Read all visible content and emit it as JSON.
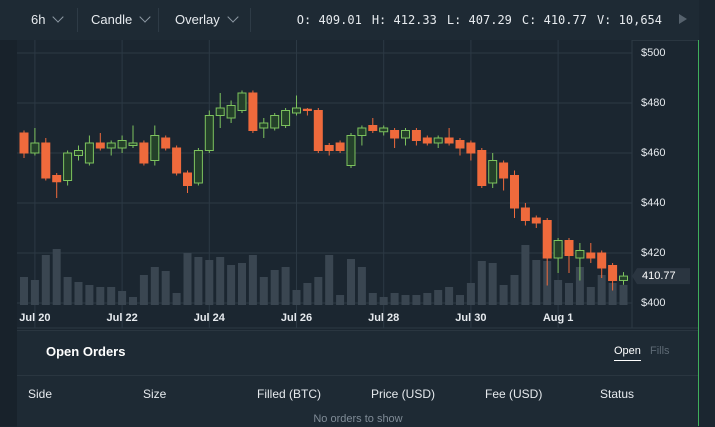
{
  "toolbar": {
    "interval": "6h",
    "chart_style": "Candle",
    "overlay": "Overlay",
    "ohlcv": [
      {
        "label": "O:",
        "value": "409.01"
      },
      {
        "label": "H:",
        "value": "412.33"
      },
      {
        "label": "L:",
        "value": "407.29"
      },
      {
        "label": "C:",
        "value": "410.77"
      },
      {
        "label": "V:",
        "value": "10,654"
      }
    ]
  },
  "chart_data": {
    "type": "candlestick",
    "categories": [
      null,
      "Jul 20",
      null,
      null,
      null,
      null,
      null,
      null,
      null,
      "Jul 22",
      null,
      null,
      null,
      null,
      null,
      null,
      null,
      "Jul 24",
      null,
      null,
      null,
      null,
      null,
      null,
      null,
      "Jul 26",
      null,
      null,
      null,
      null,
      null,
      null,
      null,
      "Jul 28",
      null,
      null,
      null,
      null,
      null,
      null,
      null,
      "Jul 30",
      null,
      null,
      null,
      null,
      null,
      null,
      null,
      "Aug 1",
      null,
      null,
      null,
      null,
      null,
      null
    ],
    "open": [
      468,
      460,
      464,
      451,
      449,
      459,
      456,
      464,
      462,
      462,
      463,
      464,
      457,
      466,
      462,
      452,
      448,
      461,
      475,
      474,
      477,
      484,
      470,
      470,
      471,
      476,
      477.5,
      477,
      463,
      464,
      455,
      467,
      471,
      468.5,
      469,
      466,
      469,
      466,
      464,
      466,
      465,
      464,
      461,
      448,
      456,
      451,
      438,
      434,
      433,
      418,
      425,
      418,
      420,
      420,
      415,
      409.01
    ],
    "high": [
      469,
      470,
      466,
      452,
      461,
      463,
      467,
      468,
      465,
      467,
      471,
      465,
      471,
      467,
      463,
      453,
      462,
      477,
      484,
      481,
      485,
      485,
      474,
      476,
      478,
      483,
      478,
      478,
      464,
      465,
      468,
      471,
      474,
      471,
      470,
      470,
      470,
      467,
      467,
      470,
      466,
      465,
      462,
      460,
      457,
      453,
      440,
      435,
      434,
      426,
      426,
      424,
      424,
      421,
      416,
      412.33
    ],
    "low": [
      458,
      459,
      449,
      442,
      447,
      457,
      455,
      461,
      459,
      460,
      462,
      455,
      455,
      461,
      451,
      444,
      447,
      460,
      470,
      472,
      476,
      468,
      466,
      469,
      470,
      475,
      475,
      460,
      459,
      460,
      454,
      463,
      468,
      467,
      462,
      463,
      463,
      463,
      462,
      463,
      459,
      457,
      446,
      446,
      445,
      434,
      431,
      430,
      407,
      412,
      412,
      409,
      416,
      410,
      405,
      407.29
    ],
    "close": [
      460,
      464,
      450,
      448.5,
      460,
      461,
      464,
      462,
      464,
      465,
      464,
      456,
      467,
      462,
      452,
      447,
      461,
      475,
      478,
      479,
      484,
      469,
      472,
      475,
      477,
      478,
      477,
      461,
      461,
      461,
      467,
      470,
      469,
      470,
      466,
      469,
      465,
      464,
      466,
      464,
      462,
      460,
      447,
      457,
      450,
      438,
      433,
      432,
      418,
      425,
      419,
      421,
      418,
      414,
      409,
      410.77
    ],
    "volume": [
      14840,
      13250,
      26500,
      29680,
      14840,
      12190,
      10600,
      9540,
      9540,
      7420,
      4240,
      15900,
      20140,
      18020,
      6360,
      27560,
      25440,
      23850,
      25440,
      21200,
      22260,
      26500,
      14840,
      18550,
      20140,
      7950,
      11660,
      14840,
      26500,
      5300,
      24380,
      20140,
      6360,
      4240,
      6360,
      5300,
      5300,
      6360,
      7950,
      9540,
      5300,
      11660,
      23320,
      22260,
      10600,
      15900,
      31800,
      23850,
      23320,
      13250,
      11660,
      20140,
      9540,
      15900,
      11660,
      10654
    ],
    "up_color": "#7dc35e",
    "down_color": "#ef6a3c",
    "volume_color": "#3a4651",
    "ylim": [
      398,
      505.2
    ],
    "yticks": [
      {
        "value": 400,
        "label": "$400"
      },
      {
        "value": 420,
        "label": "$420"
      },
      {
        "value": 440,
        "label": "$440"
      },
      {
        "value": 460,
        "label": "$460"
      },
      {
        "value": 480,
        "label": "$480"
      },
      {
        "value": 500,
        "label": "$500"
      }
    ],
    "price_label": "410.77",
    "grid": true
  },
  "orders": {
    "title": "Open Orders",
    "tabs": [
      "Open",
      "Fills"
    ],
    "columns": [
      "Side",
      "Size",
      "Filled (BTC)",
      "Price (USD)",
      "Fee (USD)",
      "Status"
    ],
    "empty_message": "No orders to show"
  }
}
